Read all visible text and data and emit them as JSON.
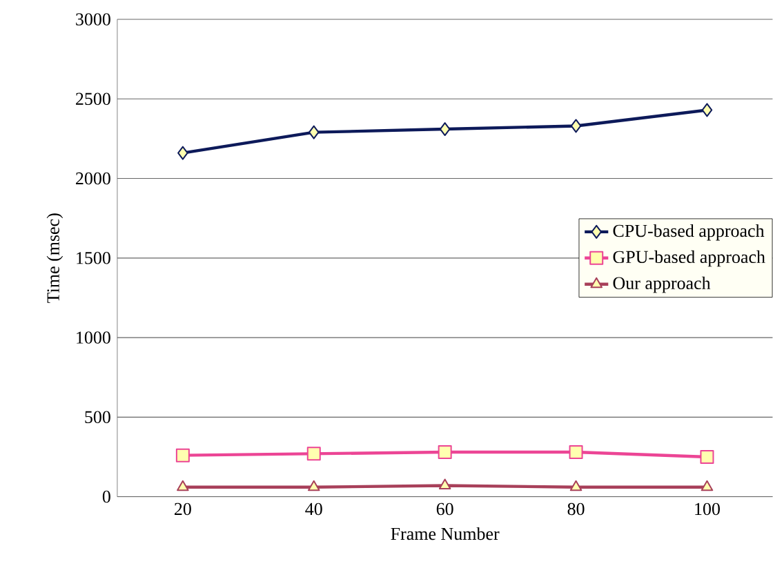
{
  "chart_data": {
    "type": "line",
    "xlabel": "Frame Number",
    "ylabel": "Time (msec)",
    "categories": [
      "20",
      "40",
      "60",
      "80",
      "100"
    ],
    "series": [
      {
        "name": "CPU-based approach",
        "color": "#0d1a5a",
        "marker": "diamond",
        "values": [
          2160,
          2290,
          2310,
          2330,
          2430
        ]
      },
      {
        "name": "GPU-based approach",
        "color": "#ec4595",
        "marker": "square",
        "values": [
          260,
          270,
          280,
          280,
          250
        ]
      },
      {
        "name": "Our approach",
        "color": "#a8405a",
        "marker": "triangle",
        "values": [
          60,
          60,
          70,
          60,
          60
        ]
      }
    ],
    "ylim": [
      0,
      3000
    ],
    "yticks": [
      0,
      500,
      1000,
      1500,
      2000,
      2500,
      3000
    ],
    "grid": "y",
    "legend": "right",
    "line_style": "solid"
  }
}
